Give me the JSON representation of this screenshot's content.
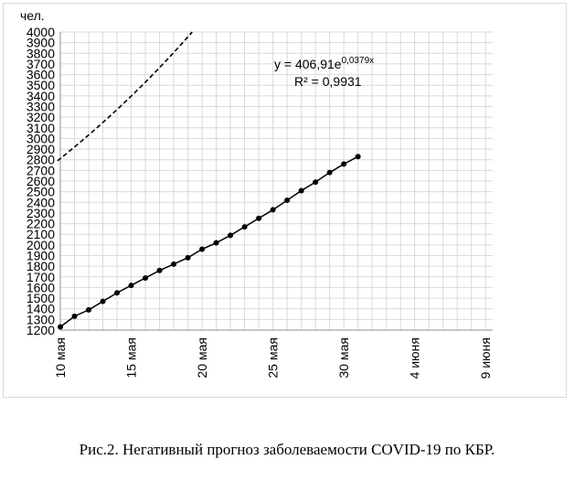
{
  "caption": "Рис.2. Негативный прогноз заболеваемости COVID-19 по КБР.",
  "chart_data": {
    "type": "line",
    "ylabel": "чел.",
    "ylim": [
      1200,
      4000
    ],
    "y_ticks": [
      1200,
      1300,
      1400,
      1500,
      1600,
      1700,
      1800,
      1900,
      2000,
      2100,
      2200,
      2300,
      2400,
      2500,
      2600,
      2700,
      2800,
      2900,
      3000,
      3100,
      3200,
      3300,
      3400,
      3500,
      3600,
      3700,
      3800,
      3900,
      4000
    ],
    "x_start": "10 мая",
    "x_range_days": [
      0,
      30.5
    ],
    "x_ticks": [
      {
        "day": 0,
        "label": "10 мая"
      },
      {
        "day": 5,
        "label": "15 мая"
      },
      {
        "day": 10,
        "label": "20 мая"
      },
      {
        "day": 15,
        "label": "25 мая"
      },
      {
        "day": 20,
        "label": "30 мая"
      },
      {
        "day": 25,
        "label": "4 июня"
      },
      {
        "day": 30,
        "label": "9 июня"
      }
    ],
    "grid": true,
    "series": [
      {
        "style": "solid-markers",
        "x": [
          "10 мая",
          "11 мая",
          "12 мая",
          "13 мая",
          "14 мая",
          "15 мая",
          "16 мая",
          "17 мая",
          "18 мая",
          "19 мая",
          "20 мая",
          "21 мая",
          "22 мая",
          "23 мая",
          "24 мая",
          "25 мая",
          "26 мая",
          "27 мая",
          "28 мая",
          "29 мая",
          "30 мая",
          "31 мая"
        ],
        "values": [
          1230,
          1330,
          1390,
          1470,
          1550,
          1620,
          1690,
          1760,
          1820,
          1880,
          1960,
          2020,
          2090,
          2170,
          2250,
          2330,
          2420,
          2510,
          2590,
          2680,
          2760,
          2830
        ]
      },
      {
        "style": "dashed",
        "equation": "y = 406,91e",
        "equation_exp": "0,0379x",
        "r2": "R² = 0,9931",
        "a": 406.91,
        "b": 0.0379,
        "x_offset": 51
      }
    ]
  }
}
